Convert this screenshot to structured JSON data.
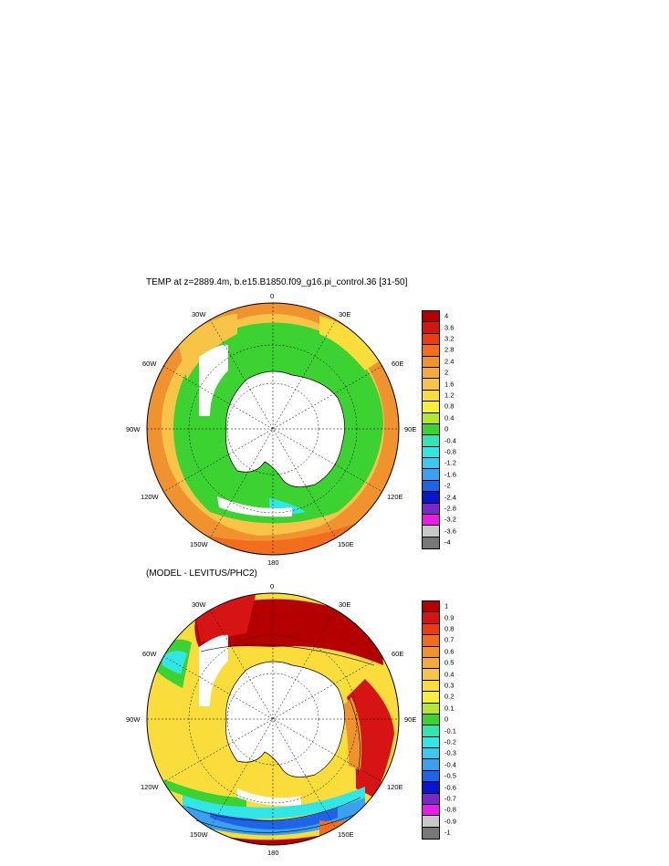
{
  "panel_top": {
    "title": "TEMP at z=2889.4m, b.e15.B1850.f09_g16.pi_control.36 [31-50]",
    "colorbar": {
      "labels": [
        "4",
        "3.6",
        "3.2",
        "2.8",
        "2.4",
        "2",
        "1.6",
        "1.2",
        "0.8",
        "0.4",
        "0",
        "-0.4",
        "-0.8",
        "-1.2",
        "-1.6",
        "-2",
        "-2.4",
        "-2.8",
        "-3.2",
        "-3.6",
        "-4"
      ],
      "colors": [
        "#b40000",
        "#d71414",
        "#ec3c14",
        "#f26e1e",
        "#f0922e",
        "#f4aa3c",
        "#f8c447",
        "#fadc3a",
        "#f6f03c",
        "#b4e632",
        "#3cd232",
        "#32e6b4",
        "#32e6e6",
        "#3cc8f0",
        "#3ca0f0",
        "#1e64e6",
        "#0a14d2",
        "#7a28c8",
        "#e61ee6",
        "#c8c8c8",
        "#787878"
      ]
    },
    "lon_labels": {
      "n0": "0",
      "e30": "30E",
      "e60": "60E",
      "e90": "90E",
      "e120": "120E",
      "e150": "150E",
      "s180": "180",
      "w150": "150W",
      "w120": "120W",
      "w90": "90W",
      "w60": "60W",
      "w30": "30W"
    }
  },
  "panel_bottom": {
    "title": "(MODEL - LEVITUS/PHC2)",
    "colorbar": {
      "labels": [
        "1",
        "0.9",
        "0.8",
        "0.7",
        "0.6",
        "0.5",
        "0.4",
        "0.3",
        "0.2",
        "0.1",
        "0",
        "-0.1",
        "-0.2",
        "-0.3",
        "-0.4",
        "-0.5",
        "-0.6",
        "-0.7",
        "-0.8",
        "-0.9",
        "-1"
      ],
      "colors": [
        "#b40000",
        "#d71414",
        "#ec3c14",
        "#f26e1e",
        "#f0922e",
        "#f4aa3c",
        "#f8c447",
        "#fadc3a",
        "#f6f03c",
        "#b4e632",
        "#3cd232",
        "#32e6b4",
        "#32e6e6",
        "#3cc8f0",
        "#3ca0f0",
        "#1e64e6",
        "#0a14d2",
        "#7a28c8",
        "#e61ee6",
        "#c8c8c8",
        "#787878"
      ]
    },
    "lon_labels": {
      "n0": "0",
      "e30": "30E",
      "e60": "60E",
      "e90": "90E",
      "e120": "120E",
      "e150": "150E",
      "s180": "180",
      "w150": "150W",
      "w120": "120W",
      "w90": "90W",
      "w60": "60W",
      "w30": "30W"
    }
  }
}
